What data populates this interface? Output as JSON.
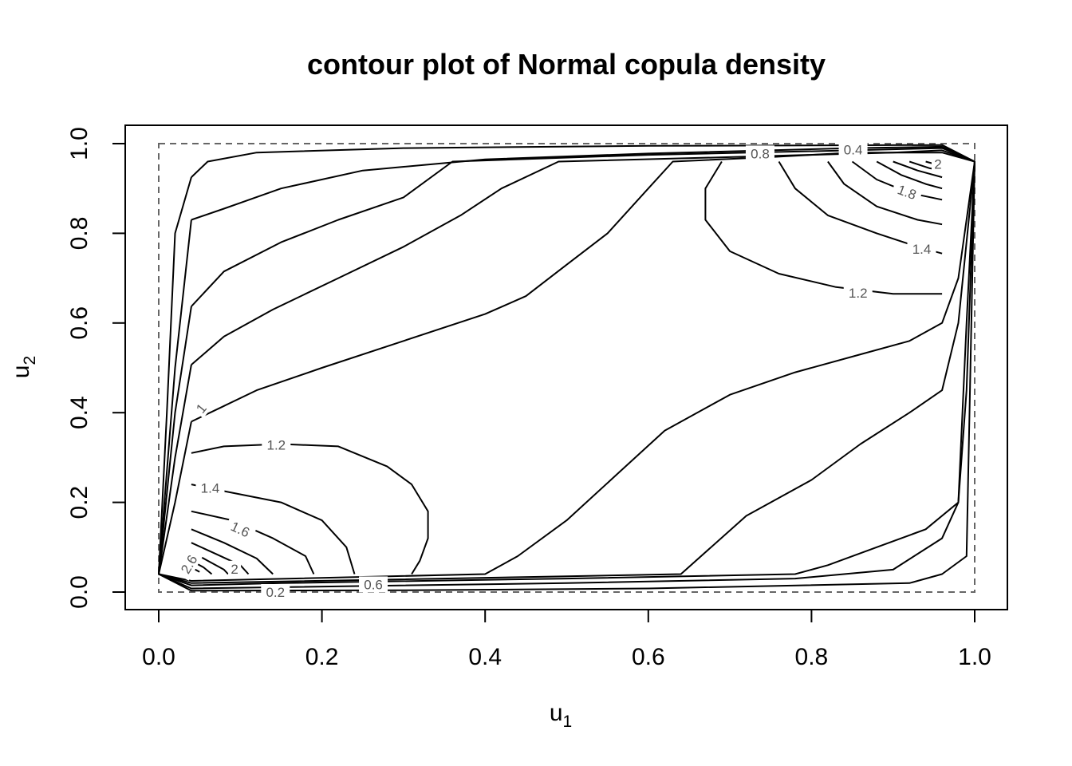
{
  "chart_data": {
    "type": "contour",
    "title": "contour plot of Normal copula density",
    "xlabel": {
      "base": "u",
      "sub": "1"
    },
    "ylabel": {
      "base": "u",
      "sub": "2"
    },
    "xlim": [
      0,
      1
    ],
    "ylim": [
      0,
      1
    ],
    "xticks": [
      {
        "value": 0.0,
        "label": "0.0"
      },
      {
        "value": 0.2,
        "label": "0.2"
      },
      {
        "value": 0.4,
        "label": "0.4"
      },
      {
        "value": 0.6,
        "label": "0.6"
      },
      {
        "value": 0.8,
        "label": "0.8"
      },
      {
        "value": 1.0,
        "label": "1.0"
      }
    ],
    "yticks": [
      {
        "value": 0.0,
        "label": "0.0"
      },
      {
        "value": 0.2,
        "label": "0.2"
      },
      {
        "value": 0.4,
        "label": "0.4"
      },
      {
        "value": 0.6,
        "label": "0.6"
      },
      {
        "value": 0.8,
        "label": "0.8"
      },
      {
        "value": 1.0,
        "label": "1.0"
      }
    ],
    "unit_square_outline": "dashed",
    "contours": [
      {
        "level": 0.2,
        "points": [
          [
            0.04,
            0.925
          ],
          [
            0.06,
            0.96
          ],
          [
            0.12,
            0.98
          ],
          [
            0.3,
            0.99
          ],
          [
            0.6,
            0.995
          ],
          [
            0.96,
            0.997
          ],
          [
            1.0,
            0.96
          ],
          [
            1.0,
            0.96
          ],
          [
            0.99,
            0.08
          ],
          [
            0.96,
            0.04
          ],
          [
            0.92,
            0.02
          ],
          [
            0.6,
            0.008
          ],
          [
            0.3,
            0.004
          ],
          [
            0.04,
            0.003
          ],
          [
            0.0,
            0.04
          ],
          [
            0.01,
            0.4
          ],
          [
            0.02,
            0.8
          ],
          [
            0.04,
            0.925
          ]
        ]
      },
      {
        "level": 0.4,
        "points": [
          [
            0.04,
            0.83
          ],
          [
            0.08,
            0.855
          ],
          [
            0.15,
            0.9
          ],
          [
            0.25,
            0.94
          ],
          [
            0.4,
            0.965
          ],
          [
            0.6,
            0.978
          ],
          [
            0.85,
            0.99
          ],
          [
            0.96,
            0.993
          ],
          [
            1.0,
            0.96
          ],
          [
            0.99,
            0.6
          ],
          [
            0.98,
            0.2
          ],
          [
            0.96,
            0.12
          ],
          [
            0.9,
            0.05
          ],
          [
            0.78,
            0.03
          ],
          [
            0.5,
            0.02
          ],
          [
            0.04,
            0.008
          ],
          [
            0.0,
            0.04
          ],
          [
            0.02,
            0.5
          ],
          [
            0.04,
            0.83
          ]
        ]
      },
      {
        "level": 0.6,
        "points": [
          [
            0.04,
            0.637
          ],
          [
            0.08,
            0.715
          ],
          [
            0.15,
            0.78
          ],
          [
            0.22,
            0.83
          ],
          [
            0.3,
            0.88
          ],
          [
            0.36,
            0.96
          ],
          [
            0.6,
            0.975
          ],
          [
            0.85,
            0.985
          ],
          [
            0.96,
            0.99
          ],
          [
            1.0,
            0.96
          ],
          [
            0.99,
            0.45
          ],
          [
            0.98,
            0.2
          ],
          [
            0.94,
            0.14
          ],
          [
            0.88,
            0.1
          ],
          [
            0.82,
            0.06
          ],
          [
            0.78,
            0.04
          ],
          [
            0.5,
            0.03
          ],
          [
            0.15,
            0.02
          ],
          [
            0.04,
            0.015
          ],
          [
            0.0,
            0.04
          ],
          [
            0.02,
            0.4
          ],
          [
            0.04,
            0.637
          ]
        ]
      },
      {
        "level": 0.8,
        "points": [
          [
            0.04,
            0.507
          ],
          [
            0.08,
            0.57
          ],
          [
            0.14,
            0.63
          ],
          [
            0.22,
            0.7
          ],
          [
            0.3,
            0.77
          ],
          [
            0.37,
            0.84
          ],
          [
            0.42,
            0.9
          ],
          [
            0.49,
            0.96
          ],
          [
            0.7,
            0.97
          ],
          [
            0.9,
            0.98
          ],
          [
            0.96,
            0.985
          ],
          [
            1.0,
            0.96
          ],
          [
            0.98,
            0.6
          ],
          [
            0.96,
            0.45
          ],
          [
            0.92,
            0.4
          ],
          [
            0.86,
            0.33
          ],
          [
            0.8,
            0.25
          ],
          [
            0.72,
            0.17
          ],
          [
            0.64,
            0.04
          ],
          [
            0.5,
            0.035
          ],
          [
            0.04,
            0.02
          ],
          [
            0.0,
            0.04
          ],
          [
            0.02,
            0.3
          ],
          [
            0.04,
            0.507
          ]
        ]
      },
      {
        "level": 1.0,
        "points": [
          [
            0.04,
            0.38
          ],
          [
            0.08,
            0.415
          ],
          [
            0.12,
            0.45
          ],
          [
            0.2,
            0.5
          ],
          [
            0.3,
            0.56
          ],
          [
            0.4,
            0.62
          ],
          [
            0.45,
            0.66
          ],
          [
            0.5,
            0.73
          ],
          [
            0.55,
            0.8
          ],
          [
            0.6,
            0.9
          ],
          [
            0.63,
            0.96
          ],
          [
            0.75,
            0.97
          ],
          [
            0.85,
            0.98
          ],
          [
            0.96,
            0.98
          ],
          [
            1.0,
            0.96
          ],
          [
            0.98,
            0.7
          ],
          [
            0.96,
            0.6
          ],
          [
            0.92,
            0.56
          ],
          [
            0.86,
            0.53
          ],
          [
            0.78,
            0.49
          ],
          [
            0.7,
            0.44
          ],
          [
            0.62,
            0.36
          ],
          [
            0.56,
            0.26
          ],
          [
            0.5,
            0.16
          ],
          [
            0.44,
            0.08
          ],
          [
            0.4,
            0.04
          ],
          [
            0.04,
            0.025
          ],
          [
            0.0,
            0.04
          ],
          [
            0.02,
            0.2
          ],
          [
            0.04,
            0.38
          ]
        ]
      },
      {
        "level": 1.2,
        "points": [
          [
            0.04,
            0.31
          ],
          [
            0.08,
            0.325
          ],
          [
            0.15,
            0.33
          ],
          [
            0.22,
            0.325
          ],
          [
            0.28,
            0.28
          ],
          [
            0.31,
            0.24
          ],
          [
            0.33,
            0.18
          ],
          [
            0.33,
            0.12
          ],
          [
            0.32,
            0.07
          ],
          [
            0.31,
            0.04
          ]
        ]
      },
      {
        "level": 1.2,
        "points": [
          [
            0.69,
            0.96
          ],
          [
            0.67,
            0.9
          ],
          [
            0.67,
            0.83
          ],
          [
            0.7,
            0.76
          ],
          [
            0.76,
            0.71
          ],
          [
            0.83,
            0.68
          ],
          [
            0.9,
            0.665
          ],
          [
            0.96,
            0.665
          ]
        ]
      },
      {
        "level": 1.4,
        "points": [
          [
            0.04,
            0.24
          ],
          [
            0.08,
            0.225
          ],
          [
            0.15,
            0.2
          ],
          [
            0.2,
            0.16
          ],
          [
            0.23,
            0.1
          ],
          [
            0.24,
            0.04
          ]
        ]
      },
      {
        "level": 1.4,
        "points": [
          [
            0.76,
            0.96
          ],
          [
            0.78,
            0.9
          ],
          [
            0.82,
            0.84
          ],
          [
            0.88,
            0.8
          ],
          [
            0.93,
            0.77
          ],
          [
            0.96,
            0.755
          ]
        ]
      },
      {
        "level": 1.6,
        "points": [
          [
            0.04,
            0.18
          ],
          [
            0.09,
            0.16
          ],
          [
            0.14,
            0.12
          ],
          [
            0.18,
            0.08
          ],
          [
            0.19,
            0.04
          ]
        ]
      },
      {
        "level": 1.6,
        "points": [
          [
            0.82,
            0.96
          ],
          [
            0.84,
            0.91
          ],
          [
            0.88,
            0.86
          ],
          [
            0.93,
            0.83
          ],
          [
            0.96,
            0.82
          ]
        ]
      },
      {
        "level": 1.8,
        "points": [
          [
            0.04,
            0.14
          ],
          [
            0.08,
            0.11
          ],
          [
            0.12,
            0.075
          ],
          [
            0.14,
            0.04
          ]
        ]
      },
      {
        "level": 1.8,
        "points": [
          [
            0.85,
            0.96
          ],
          [
            0.88,
            0.92
          ],
          [
            0.92,
            0.89
          ],
          [
            0.96,
            0.875
          ]
        ]
      },
      {
        "level": 2.0,
        "points": [
          [
            0.04,
            0.11
          ],
          [
            0.07,
            0.085
          ],
          [
            0.1,
            0.06
          ],
          [
            0.11,
            0.04
          ]
        ]
      },
      {
        "level": 2.0,
        "points": [
          [
            0.88,
            0.96
          ],
          [
            0.91,
            0.93
          ],
          [
            0.94,
            0.91
          ],
          [
            0.96,
            0.9
          ]
        ]
      },
      {
        "level": 2.2,
        "points": [
          [
            0.04,
            0.09
          ],
          [
            0.06,
            0.07
          ],
          [
            0.08,
            0.05
          ],
          [
            0.085,
            0.04
          ]
        ]
      },
      {
        "level": 2.2,
        "points": [
          [
            0.9,
            0.96
          ],
          [
            0.93,
            0.94
          ],
          [
            0.96,
            0.925
          ]
        ]
      },
      {
        "level": 2.4,
        "points": [
          [
            0.04,
            0.07
          ],
          [
            0.055,
            0.055
          ],
          [
            0.065,
            0.04
          ]
        ]
      },
      {
        "level": 2.4,
        "points": [
          [
            0.92,
            0.96
          ],
          [
            0.945,
            0.945
          ],
          [
            0.96,
            0.94
          ]
        ]
      },
      {
        "level": 2.6,
        "points": [
          [
            0.04,
            0.055
          ],
          [
            0.05,
            0.045
          ]
        ]
      },
      {
        "level": 2.6,
        "points": [
          [
            0.94,
            0.96
          ],
          [
            0.96,
            0.95
          ]
        ]
      }
    ],
    "contour_labels": [
      {
        "text": "0.2",
        "x": 0.143,
        "y": 0.0,
        "angle": 0
      },
      {
        "text": "0.6",
        "x": 0.263,
        "y": 0.017,
        "angle": 0
      },
      {
        "text": "0.8",
        "x": 0.737,
        "y": 0.978,
        "angle": 0
      },
      {
        "text": "0.4",
        "x": 0.851,
        "y": 0.987,
        "angle": 0
      },
      {
        "text": "1",
        "x": 0.052,
        "y": 0.41,
        "angle": -50
      },
      {
        "text": "1.2",
        "x": 0.144,
        "y": 0.328,
        "angle": 0
      },
      {
        "text": "1.2",
        "x": 0.857,
        "y": 0.667,
        "angle": 0
      },
      {
        "text": "1.4",
        "x": 0.063,
        "y": 0.232,
        "angle": 0
      },
      {
        "text": "1.4",
        "x": 0.935,
        "y": 0.765,
        "angle": 0
      },
      {
        "text": "1.6",
        "x": 0.1,
        "y": 0.14,
        "angle": 25
      },
      {
        "text": "1.8",
        "x": 0.917,
        "y": 0.892,
        "angle": 20
      },
      {
        "text": "2",
        "x": 0.093,
        "y": 0.052,
        "angle": 0
      },
      {
        "text": "2.6",
        "x": 0.037,
        "y": 0.062,
        "angle": -60
      },
      {
        "text": "2",
        "x": 0.955,
        "y": 0.955,
        "angle": 0
      }
    ]
  }
}
